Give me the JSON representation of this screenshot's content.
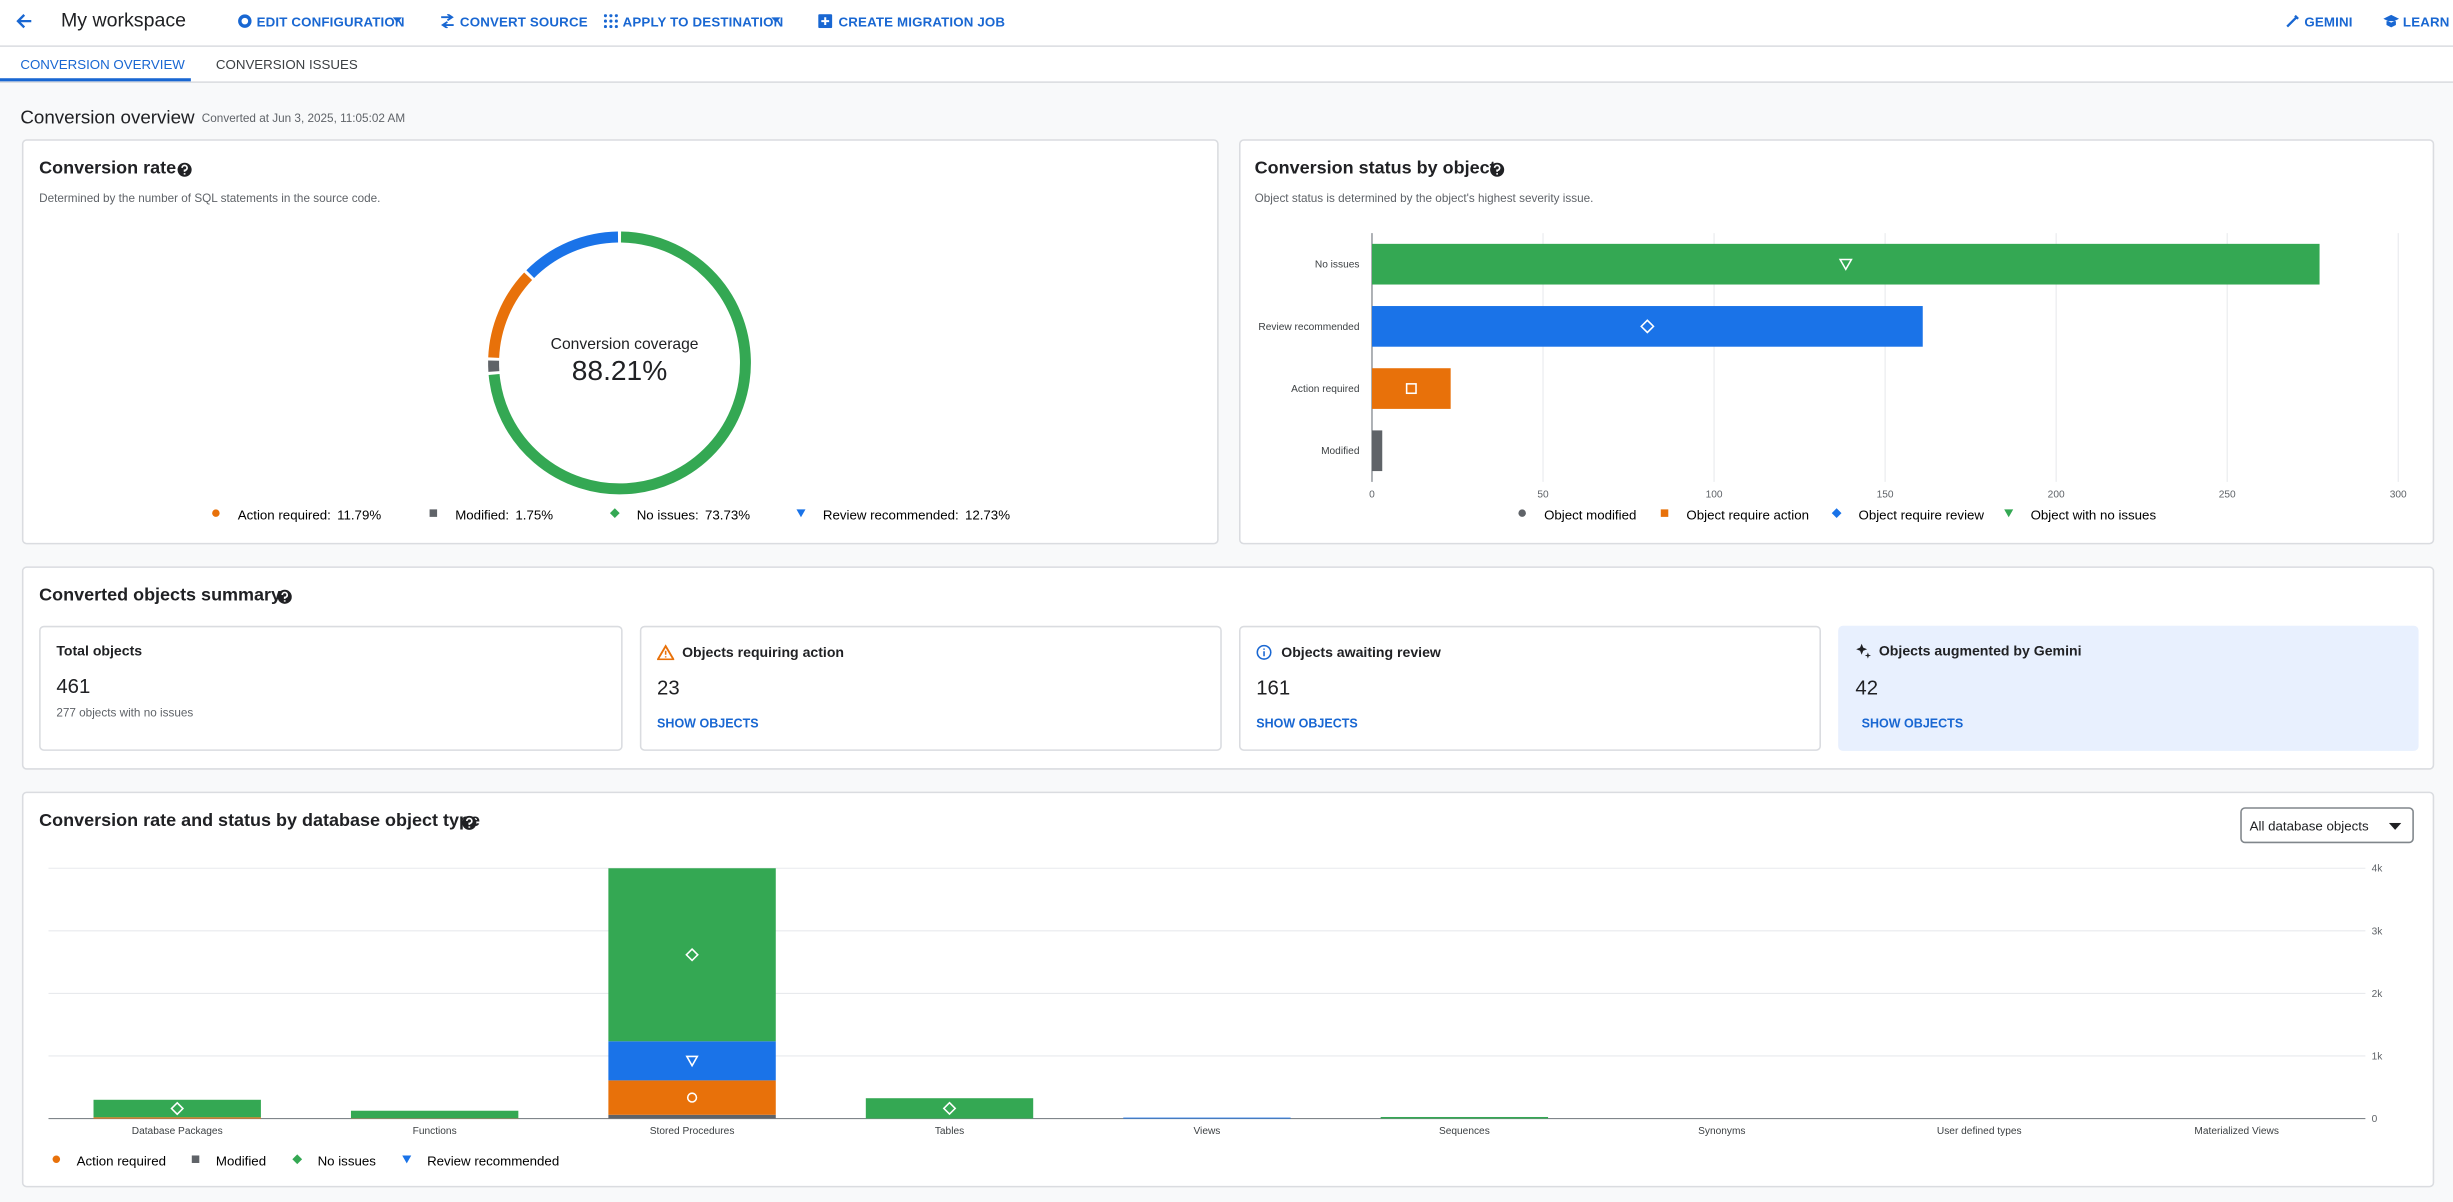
{
  "header": {
    "title": "My workspace",
    "actions": [
      "EDIT CONFIGURATION",
      "CONVERT SOURCE",
      "APPLY TO DESTINATION",
      "CREATE MIGRATION JOB"
    ],
    "right_actions": [
      "GEMINI",
      "LEARN"
    ]
  },
  "tabs": [
    "CONVERSION OVERVIEW",
    "CONVERSION ISSUES"
  ],
  "overview": {
    "title": "Conversion overview",
    "converted_at": "Converted at Jun 3, 2025, 11:05:02 AM"
  },
  "chart_data": [
    {
      "type": "pie",
      "title": "Conversion rate",
      "subtitle": "Determined by the number of SQL statements in the source code.",
      "center_label": "Conversion coverage",
      "center_value": "88.21%",
      "categories": [
        "Action required:",
        "Modified:",
        "No issues:",
        "Review recommended:"
      ],
      "values": [
        11.79,
        1.75,
        73.73,
        12.73
      ],
      "value_labels": [
        "11.79%",
        "1.75%",
        "73.73%",
        "12.73%"
      ],
      "colors": [
        "#e8710a",
        "#5f6368",
        "#34a853",
        "#1a73e8"
      ],
      "markers": [
        "circle",
        "square",
        "diamond",
        "triangle"
      ]
    },
    {
      "type": "hbar",
      "title": "Conversion status by object",
      "subtitle": "Object status is determined by the object's highest severity issue.",
      "categories": [
        "No issues",
        "Review recommended",
        "Action required",
        "Modified"
      ],
      "series": [
        {
          "name": "Object modified",
          "color": "#5f6368",
          "marker": "circle",
          "values": [
            null,
            null,
            null,
            3
          ]
        },
        {
          "name": "Object require action",
          "color": "#e8710a",
          "marker": "square",
          "values": [
            null,
            null,
            23,
            null
          ]
        },
        {
          "name": "Object require review",
          "color": "#1a73e8",
          "marker": "diamond",
          "values": [
            null,
            161,
            null,
            null
          ]
        },
        {
          "name": "Object with no issues",
          "color": "#34a853",
          "marker": "triangle",
          "values": [
            277,
            null,
            null,
            null
          ]
        }
      ],
      "xlim": [
        0,
        300
      ],
      "xticks": [
        0,
        50,
        100,
        150,
        200,
        250,
        300
      ],
      "grid": true
    },
    {
      "type": "stacked_bar",
      "title": "Conversion rate and status by database object type",
      "categories": [
        "Database Packages",
        "Functions",
        "Stored Procedures",
        "Tables",
        "Views",
        "Sequences",
        "Synonyms",
        "User defined types",
        "Materialized Views"
      ],
      "series": [
        {
          "name": "Action required",
          "color": "#e8710a",
          "marker": "circle",
          "values": [
            20,
            5,
            550,
            0,
            0,
            0,
            0,
            0,
            0
          ]
        },
        {
          "name": "Modified",
          "color": "#5f6368",
          "marker": "square",
          "values": [
            0,
            0,
            60,
            0,
            0,
            0,
            0,
            0,
            0
          ]
        },
        {
          "name": "No issues",
          "color": "#34a853",
          "marker": "diamond",
          "values": [
            280,
            120,
            2765,
            325,
            0,
            25,
            0,
            0,
            0
          ]
        },
        {
          "name": "Review recommended",
          "color": "#1a73e8",
          "marker": "triangle",
          "values": [
            0,
            0,
            625,
            0,
            15,
            0,
            0,
            0,
            0
          ]
        }
      ],
      "ylim": [
        0,
        4000
      ],
      "yticks": [
        0,
        {
          "value": 1000,
          "label": "1k"
        },
        {
          "value": 2000,
          "label": "2k"
        },
        {
          "value": 3000,
          "label": "3k"
        },
        {
          "value": 4000,
          "label": "4k"
        }
      ],
      "grid": true
    }
  ],
  "summary": {
    "title": "Converted objects summary",
    "cards": [
      {
        "title": "Total objects",
        "value": 461,
        "note": "277 objects with no issues"
      },
      {
        "title": "Objects requiring action",
        "value": 23,
        "link": "SHOW OBJECTS"
      },
      {
        "title": "Objects awaiting review",
        "value": 161,
        "link": "SHOW OBJECTS"
      },
      {
        "title": "Objects augmented by Gemini",
        "value": 42,
        "link": "SHOW OBJECTS"
      }
    ]
  },
  "type_filter": "All database objects"
}
